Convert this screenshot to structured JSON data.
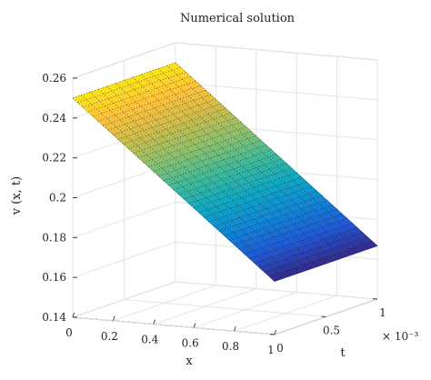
{
  "chart_data": {
    "type": "surface",
    "title": "Numerical solution",
    "xlabel": "x",
    "ylabel": "t",
    "zlabel": "v (x, t)",
    "x_ticks": [
      "0",
      "0.2",
      "0.4",
      "0.6",
      "0.8",
      "1"
    ],
    "t_ticks": [
      "0",
      "0.5",
      "1"
    ],
    "t_exponent": "× 10⁻³",
    "z_ticks": [
      "0.14",
      "0.16",
      "0.18",
      "0.2",
      "0.22",
      "0.24",
      "0.26"
    ],
    "xlim": [
      0,
      1
    ],
    "tlim": [
      0,
      0.001
    ],
    "zlim": [
      0.14,
      0.26
    ],
    "grid": true,
    "colormap": "parula",
    "colors": [
      "#352a87",
      "#2058d4",
      "#1283d4",
      "#0fa6c3",
      "#3db89a",
      "#86bf6f",
      "#c8bc4d",
      "#fdc03c",
      "#f9e61a"
    ],
    "surface": {
      "v_at_x0": 0.25,
      "v_at_x1": 0.1667,
      "t_dependence": "constant"
    }
  }
}
